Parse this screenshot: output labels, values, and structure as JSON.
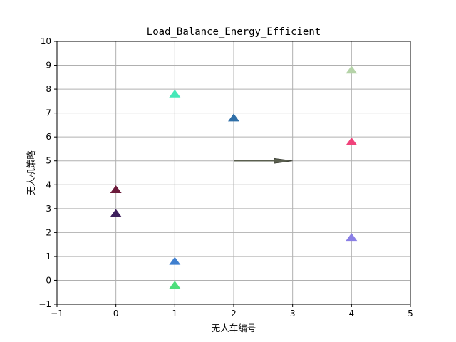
{
  "chart_data": {
    "type": "scatter",
    "title": "Load_Balance_Energy_Efficient",
    "xlabel": "无人车编号",
    "ylabel": "无人机策略",
    "xlim": [
      -1,
      5
    ],
    "ylim": [
      -1,
      10
    ],
    "xticks": [
      -1,
      0,
      1,
      2,
      3,
      4,
      5
    ],
    "yticks": [
      -1,
      0,
      1,
      2,
      3,
      4,
      5,
      6,
      7,
      8,
      9,
      10
    ],
    "grid": true,
    "marker": "triangle-up",
    "points": [
      {
        "x": 0,
        "y": 3.8,
        "color": "#6b1a3a"
      },
      {
        "x": 0,
        "y": 2.8,
        "color": "#3d1f5c"
      },
      {
        "x": 1,
        "y": 7.8,
        "color": "#45e8b8"
      },
      {
        "x": 1,
        "y": 0.8,
        "color": "#3f7fcf"
      },
      {
        "x": 1,
        "y": -0.2,
        "color": "#4ede7c"
      },
      {
        "x": 2,
        "y": 6.8,
        "color": "#2f6fa8"
      },
      {
        "x": 4,
        "y": 8.8,
        "color": "#b5d3a8"
      },
      {
        "x": 4,
        "y": 5.8,
        "color": "#f0427a"
      },
      {
        "x": 4,
        "y": 1.8,
        "color": "#8a7fe6"
      }
    ],
    "arrows": [
      {
        "x_start": 2,
        "y_start": 5,
        "x_end": 3,
        "y_end": 5,
        "color": "#5a5f4f"
      }
    ]
  }
}
